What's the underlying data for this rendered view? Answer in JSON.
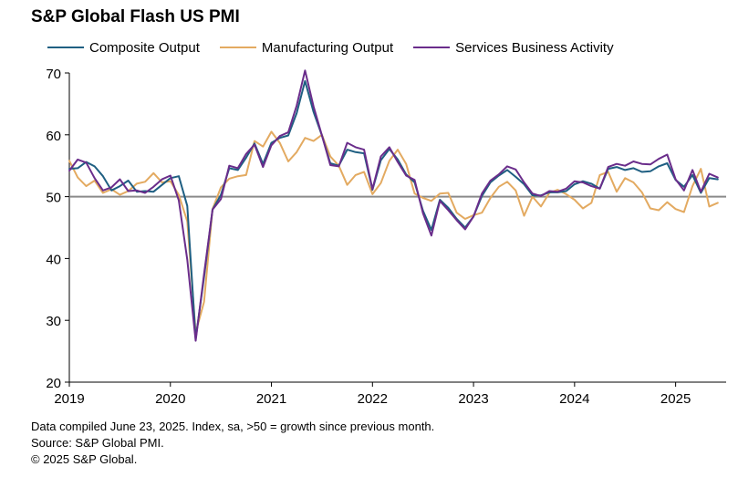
{
  "title": "S&P Global Flash US PMI",
  "footer": [
    "Data compiled June 23, 2025. Index, sa, >50 = growth since previous month.",
    "Source: S&P Global PMI.",
    "© 2025 S&P Global."
  ],
  "chart_data": {
    "type": "line",
    "title": "S&P Global Flash US PMI",
    "xlabel": "",
    "ylabel": "",
    "ylim": [
      20,
      70
    ],
    "xlim": [
      2019.0,
      2025.5
    ],
    "yticks": [
      "20",
      "30",
      "40",
      "50",
      "60",
      "70"
    ],
    "xticks": [
      "2019",
      "2020",
      "2021",
      "2022",
      "2023",
      "2024",
      "2025"
    ],
    "reference_line": 50,
    "grid": false,
    "legend": "top",
    "x": [
      2019.0,
      2019.083,
      2019.167,
      2019.25,
      2019.333,
      2019.417,
      2019.5,
      2019.583,
      2019.667,
      2019.75,
      2019.833,
      2019.917,
      2020.0,
      2020.083,
      2020.167,
      2020.25,
      2020.333,
      2020.417,
      2020.5,
      2020.583,
      2020.667,
      2020.75,
      2020.833,
      2020.917,
      2021.0,
      2021.083,
      2021.167,
      2021.25,
      2021.333,
      2021.417,
      2021.5,
      2021.583,
      2021.667,
      2021.75,
      2021.833,
      2021.917,
      2022.0,
      2022.083,
      2022.167,
      2022.25,
      2022.333,
      2022.417,
      2022.5,
      2022.583,
      2022.667,
      2022.75,
      2022.833,
      2022.917,
      2023.0,
      2023.083,
      2023.167,
      2023.25,
      2023.333,
      2023.417,
      2023.5,
      2023.583,
      2023.667,
      2023.75,
      2023.833,
      2023.917,
      2024.0,
      2024.083,
      2024.167,
      2024.25,
      2024.333,
      2024.417,
      2024.5,
      2024.583,
      2024.667,
      2024.75,
      2024.833,
      2024.917,
      2025.0,
      2025.083,
      2025.167,
      2025.25,
      2025.333,
      2025.417
    ],
    "series": [
      {
        "name": "Composite Output",
        "color": "#1f5f82",
        "values": [
          54.5,
          54.6,
          55.6,
          54.9,
          53.3,
          51.0,
          51.7,
          52.6,
          50.8,
          50.9,
          50.8,
          51.9,
          53.0,
          53.3,
          48.5,
          27.0,
          37.0,
          47.9,
          50.3,
          54.6,
          54.3,
          56.3,
          58.6,
          55.3,
          58.7,
          59.5,
          59.9,
          63.5,
          68.7,
          63.7,
          59.9,
          55.4,
          55.0,
          57.6,
          57.2,
          57.0,
          51.1,
          55.9,
          57.7,
          56.0,
          53.6,
          52.3,
          47.7,
          44.6,
          49.5,
          48.2,
          46.4,
          45.0,
          46.8,
          50.1,
          52.3,
          53.4,
          54.3,
          53.2,
          52.0,
          50.2,
          50.2,
          50.7,
          50.7,
          50.9,
          52.0,
          52.5,
          52.1,
          51.3,
          54.5,
          54.8,
          54.3,
          54.6,
          54.0,
          54.1,
          54.9,
          55.4,
          52.7,
          51.6,
          53.5,
          50.6,
          53.0,
          52.8
        ]
      },
      {
        "name": "Manufacturing Output",
        "color": "#e3aa61",
        "values": [
          55.8,
          53.1,
          51.7,
          52.6,
          50.6,
          51.2,
          50.3,
          50.9,
          52.1,
          52.4,
          53.8,
          52.3,
          52.5,
          50.3,
          46.0,
          28.0,
          33.0,
          48.0,
          51.5,
          52.9,
          53.3,
          53.5,
          59.0,
          58.1,
          60.5,
          58.7,
          55.7,
          57.2,
          59.5,
          59.0,
          60.0,
          56.5,
          55.0,
          51.9,
          53.5,
          54.0,
          50.4,
          52.2,
          55.8,
          57.6,
          55.3,
          50.5,
          49.8,
          49.3,
          50.5,
          50.6,
          47.4,
          46.4,
          47.0,
          47.4,
          49.8,
          51.6,
          52.4,
          51.0,
          46.9,
          50.0,
          48.4,
          50.6,
          51.1,
          50.4,
          49.5,
          48.1,
          49.0,
          53.5,
          54.0,
          50.8,
          53.0,
          52.3,
          50.7,
          48.1,
          47.8,
          49.1,
          48.0,
          47.5,
          51.7,
          54.5,
          48.4,
          49.0
        ]
      },
      {
        "name": "Services Business Activity",
        "color": "#6a2d8b",
        "values": [
          54.2,
          56.0,
          55.5,
          53.0,
          51.0,
          51.5,
          52.8,
          50.9,
          51.0,
          50.6,
          51.6,
          52.8,
          53.4,
          49.4,
          39.8,
          26.7,
          37.5,
          47.9,
          49.6,
          55.0,
          54.6,
          56.9,
          58.4,
          54.8,
          58.3,
          59.8,
          60.4,
          64.7,
          70.4,
          64.6,
          59.9,
          55.1,
          54.9,
          58.7,
          58.0,
          57.6,
          51.2,
          56.5,
          58.0,
          55.6,
          53.4,
          52.7,
          47.3,
          43.7,
          49.3,
          47.8,
          46.2,
          44.7,
          46.8,
          50.5,
          52.6,
          53.6,
          54.9,
          54.4,
          52.3,
          50.5,
          50.1,
          50.9,
          50.8,
          51.3,
          52.5,
          52.3,
          51.7,
          51.3,
          54.8,
          55.3,
          55.0,
          55.7,
          55.3,
          55.2,
          56.1,
          56.8,
          52.8,
          51.0,
          54.3,
          50.8,
          53.7,
          53.1
        ]
      }
    ]
  }
}
